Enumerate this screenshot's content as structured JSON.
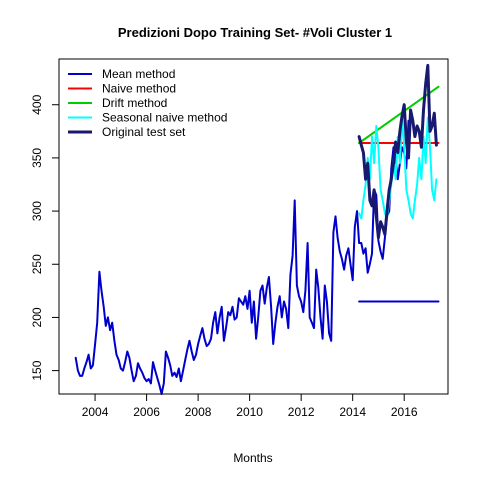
{
  "chart_data": {
    "type": "line",
    "title": "Predizioni Dopo Training Set- #Voli Cluster  1",
    "xlabel": "Months",
    "ylabel": "",
    "xlim": [
      2002.6,
      2017.7
    ],
    "ylim": [
      128,
      443
    ],
    "xticks": [
      2004,
      2006,
      2008,
      2010,
      2012,
      2014,
      2016
    ],
    "yticks": [
      150,
      200,
      250,
      300,
      350,
      400
    ],
    "legend_position": "top-left",
    "legend": [
      {
        "label": "Mean method",
        "color": "#0000cd"
      },
      {
        "label": "Naive method",
        "color": "#ff0000"
      },
      {
        "label": "Drift method",
        "color": "#00cd00"
      },
      {
        "label": "Seasonal naive method",
        "color": "#00ffff"
      },
      {
        "label": "Original test set",
        "color": "#191970"
      }
    ],
    "series": [
      {
        "name": "Training",
        "color": "#0000cd",
        "width": 2,
        "x_start": 2003.25,
        "step": 0.08333,
        "values": [
          162,
          150,
          145,
          145,
          152,
          158,
          165,
          152,
          155,
          175,
          195,
          243,
          225,
          210,
          192,
          200,
          188,
          195,
          178,
          165,
          160,
          152,
          150,
          158,
          168,
          162,
          150,
          140,
          145,
          157,
          152,
          148,
          143,
          140,
          142,
          138,
          158,
          150,
          143,
          136,
          128,
          138,
          168,
          162,
          155,
          145,
          148,
          144,
          152,
          140,
          150,
          160,
          170,
          178,
          168,
          160,
          165,
          175,
          183,
          190,
          180,
          173,
          175,
          180,
          195,
          205,
          185,
          200,
          210,
          178,
          190,
          205,
          202,
          210,
          198,
          200,
          218,
          215,
          212,
          220,
          208,
          225,
          195,
          215,
          180,
          200,
          225,
          230,
          213,
          228,
          238,
          210,
          175,
          195,
          210,
          220,
          200,
          215,
          208,
          190,
          240,
          258,
          310,
          230,
          220,
          215,
          205,
          225,
          270,
          200,
          195,
          190,
          245,
          228,
          200,
          180,
          230,
          215,
          185,
          178,
          280,
          295,
          275,
          262,
          255,
          245,
          258,
          265,
          250,
          235,
          285,
          300,
          270,
          270,
          260,
          265,
          242,
          250,
          260,
          320,
          315,
          272,
          262,
          255,
          275,
          295,
          300,
          340,
          360,
          350,
          330,
          345,
          360,
          355,
          340,
          385
        ]
      },
      {
        "name": "Mean",
        "color": "#0000cd",
        "width": 2,
        "x": [
          2014.25,
          2017.33
        ],
        "values": [
          215,
          215
        ]
      },
      {
        "name": "Naive",
        "color": "#ff0000",
        "width": 2,
        "x": [
          2014.25,
          2017.33
        ],
        "values": [
          364,
          364
        ]
      },
      {
        "name": "Drift",
        "color": "#00cd00",
        "width": 2,
        "x": [
          2014.25,
          2017.33
        ],
        "values": [
          364,
          417
        ]
      },
      {
        "name": "Seasonal naive",
        "color": "#00ffff",
        "width": 2,
        "x_start": 2014.25,
        "step": 0.08333,
        "values": [
          298,
          293,
          310,
          325,
          350,
          330,
          370,
          345,
          380,
          360,
          320,
          310,
          298,
          293,
          310,
          325,
          350,
          330,
          370,
          345,
          388,
          360,
          320,
          310,
          298,
          293,
          310,
          325,
          350,
          330,
          370,
          345,
          388,
          360,
          320,
          310,
          330
        ]
      },
      {
        "name": "Original",
        "color": "#191970",
        "width": 3,
        "x_start": 2014.25,
        "step": 0.08333,
        "values": [
          370,
          362,
          355,
          330,
          345,
          310,
          305,
          320,
          295,
          275,
          290,
          285,
          278,
          300,
          320,
          330,
          345,
          365,
          355,
          375,
          390,
          400,
          365,
          350,
          395,
          385,
          370,
          380,
          375,
          360,
          395,
          420,
          437,
          375,
          380,
          392,
          362
        ]
      }
    ]
  }
}
